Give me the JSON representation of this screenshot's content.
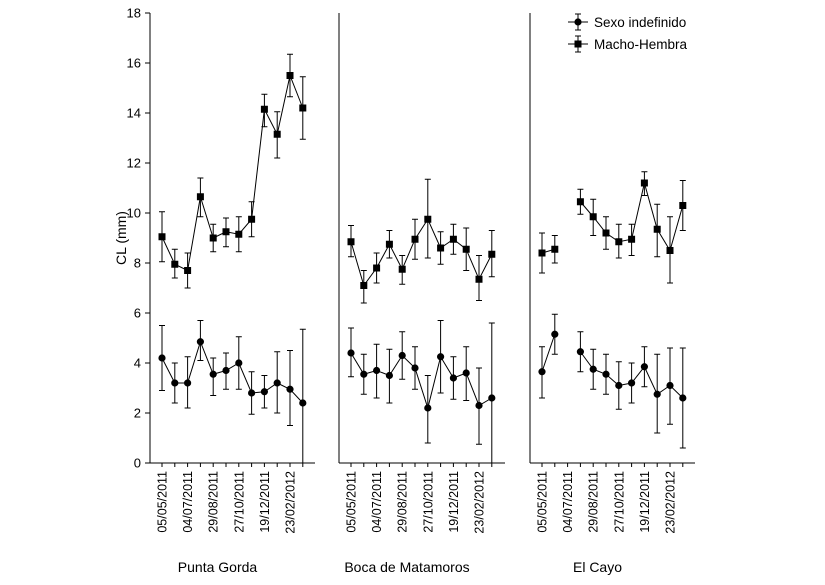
{
  "chart_data": {
    "type": "line",
    "ylabel": "CL (mm)",
    "ylim": [
      0,
      18
    ],
    "yticks": [
      0,
      2,
      4,
      6,
      8,
      10,
      12,
      14,
      16,
      18
    ],
    "date_labels": [
      "05/05/2011",
      "04/07/2011",
      "29/08/2011",
      "27/10/2011",
      "19/12/2011",
      "23/02/2012"
    ],
    "legend": {
      "placement": "top-right",
      "entries": [
        {
          "label": "Sexo indefinido",
          "marker": "circle"
        },
        {
          "label": "Macho-Hembra",
          "marker": "square"
        }
      ]
    },
    "panels": [
      {
        "title": "Punta Gorda",
        "series": [
          {
            "name": "Sexo indefinido",
            "marker": "circle",
            "values": [
              4.2,
              3.2,
              3.2,
              4.85,
              3.55,
              3.7,
              4.0,
              2.8,
              2.85,
              3.2,
              2.95,
              2.4
            ],
            "err_low": [
              2.9,
              2.4,
              2.2,
              4.1,
              2.7,
              2.95,
              2.95,
              1.95,
              2.2,
              2.0,
              1.5,
              0.0
            ],
            "err_high": [
              5.5,
              4.0,
              4.25,
              5.7,
              4.2,
              4.4,
              5.05,
              3.65,
              3.5,
              4.45,
              4.5,
              5.35
            ],
            "segments": [
              [
                0,
                11
              ]
            ]
          },
          {
            "name": "Macho-Hembra",
            "marker": "square",
            "values": [
              9.05,
              7.95,
              7.7,
              10.65,
              9.0,
              9.25,
              9.15,
              9.75,
              14.15,
              13.15,
              15.5,
              14.2
            ],
            "err_low": [
              8.05,
              7.4,
              7.0,
              9.85,
              8.45,
              8.65,
              8.45,
              9.05,
              13.45,
              12.2,
              14.65,
              12.95
            ],
            "err_high": [
              10.05,
              8.55,
              8.4,
              11.4,
              9.55,
              9.8,
              9.85,
              10.45,
              14.75,
              14.05,
              16.35,
              15.45
            ],
            "segments": [
              [
                0,
                11
              ]
            ]
          }
        ]
      },
      {
        "title": "Boca de Matamoros",
        "series": [
          {
            "name": "Sexo indefinido",
            "marker": "circle",
            "values": [
              4.4,
              3.55,
              3.7,
              3.5,
              4.3,
              3.8,
              2.2,
              4.25,
              3.4,
              3.6,
              2.3,
              2.6
            ],
            "err_low": [
              3.45,
              2.75,
              2.6,
              2.4,
              3.35,
              2.95,
              0.8,
              2.8,
              2.55,
              2.5,
              0.75,
              0.0
            ],
            "err_high": [
              5.4,
              4.35,
              4.75,
              4.55,
              5.25,
              4.65,
              3.5,
              5.7,
              4.25,
              4.65,
              3.8,
              5.6
            ],
            "segments": [
              [
                0,
                11
              ]
            ]
          },
          {
            "name": "Macho-Hembra",
            "marker": "square",
            "values": [
              8.85,
              7.1,
              7.8,
              8.75,
              7.75,
              8.95,
              9.75,
              8.6,
              8.95,
              8.55,
              7.35,
              8.35
            ],
            "err_low": [
              8.25,
              6.4,
              7.2,
              8.2,
              7.15,
              8.15,
              8.2,
              7.95,
              8.35,
              7.7,
              6.5,
              7.45
            ],
            "err_high": [
              9.5,
              7.7,
              8.4,
              9.3,
              8.3,
              9.75,
              11.35,
              9.25,
              9.55,
              9.4,
              8.3,
              9.3
            ],
            "segments": [
              [
                0,
                11
              ]
            ]
          }
        ]
      },
      {
        "title": "El Cayo",
        "series": [
          {
            "name": "Sexo indefinido",
            "marker": "circle",
            "values": [
              3.65,
              5.15,
              null,
              4.45,
              3.75,
              3.55,
              3.1,
              3.2,
              3.85,
              2.75,
              3.1,
              2.6
            ],
            "err_low": [
              2.6,
              4.35,
              null,
              3.65,
              2.95,
              2.75,
              2.15,
              2.4,
              3.05,
              1.2,
              1.55,
              0.6
            ],
            "err_high": [
              4.65,
              5.95,
              null,
              5.25,
              4.55,
              4.35,
              4.05,
              4.0,
              4.65,
              4.35,
              4.6,
              4.6
            ],
            "segments": [
              [
                0,
                1
              ],
              [
                3,
                11
              ]
            ]
          },
          {
            "name": "Macho-Hembra",
            "marker": "square",
            "values": [
              8.4,
              8.55,
              null,
              10.45,
              9.85,
              9.2,
              8.85,
              8.95,
              11.2,
              9.35,
              8.5,
              10.3
            ],
            "err_low": [
              7.6,
              8.0,
              null,
              9.95,
              9.1,
              8.55,
              8.2,
              8.3,
              10.7,
              8.25,
              7.2,
              9.3
            ],
            "err_high": [
              9.2,
              9.1,
              null,
              10.95,
              10.55,
              9.85,
              9.55,
              9.55,
              11.65,
              10.35,
              9.85,
              11.3
            ],
            "segments": [
              [
                0,
                1
              ],
              [
                3,
                11
              ]
            ]
          }
        ]
      }
    ]
  }
}
